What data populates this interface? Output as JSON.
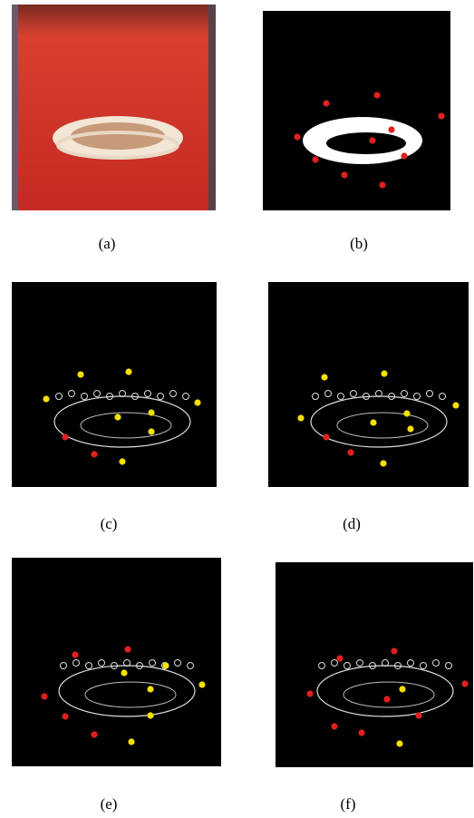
{
  "captions": [
    "(a)",
    "(b)",
    "(c)",
    "(d)",
    "(e)",
    "(f)"
  ]
}
